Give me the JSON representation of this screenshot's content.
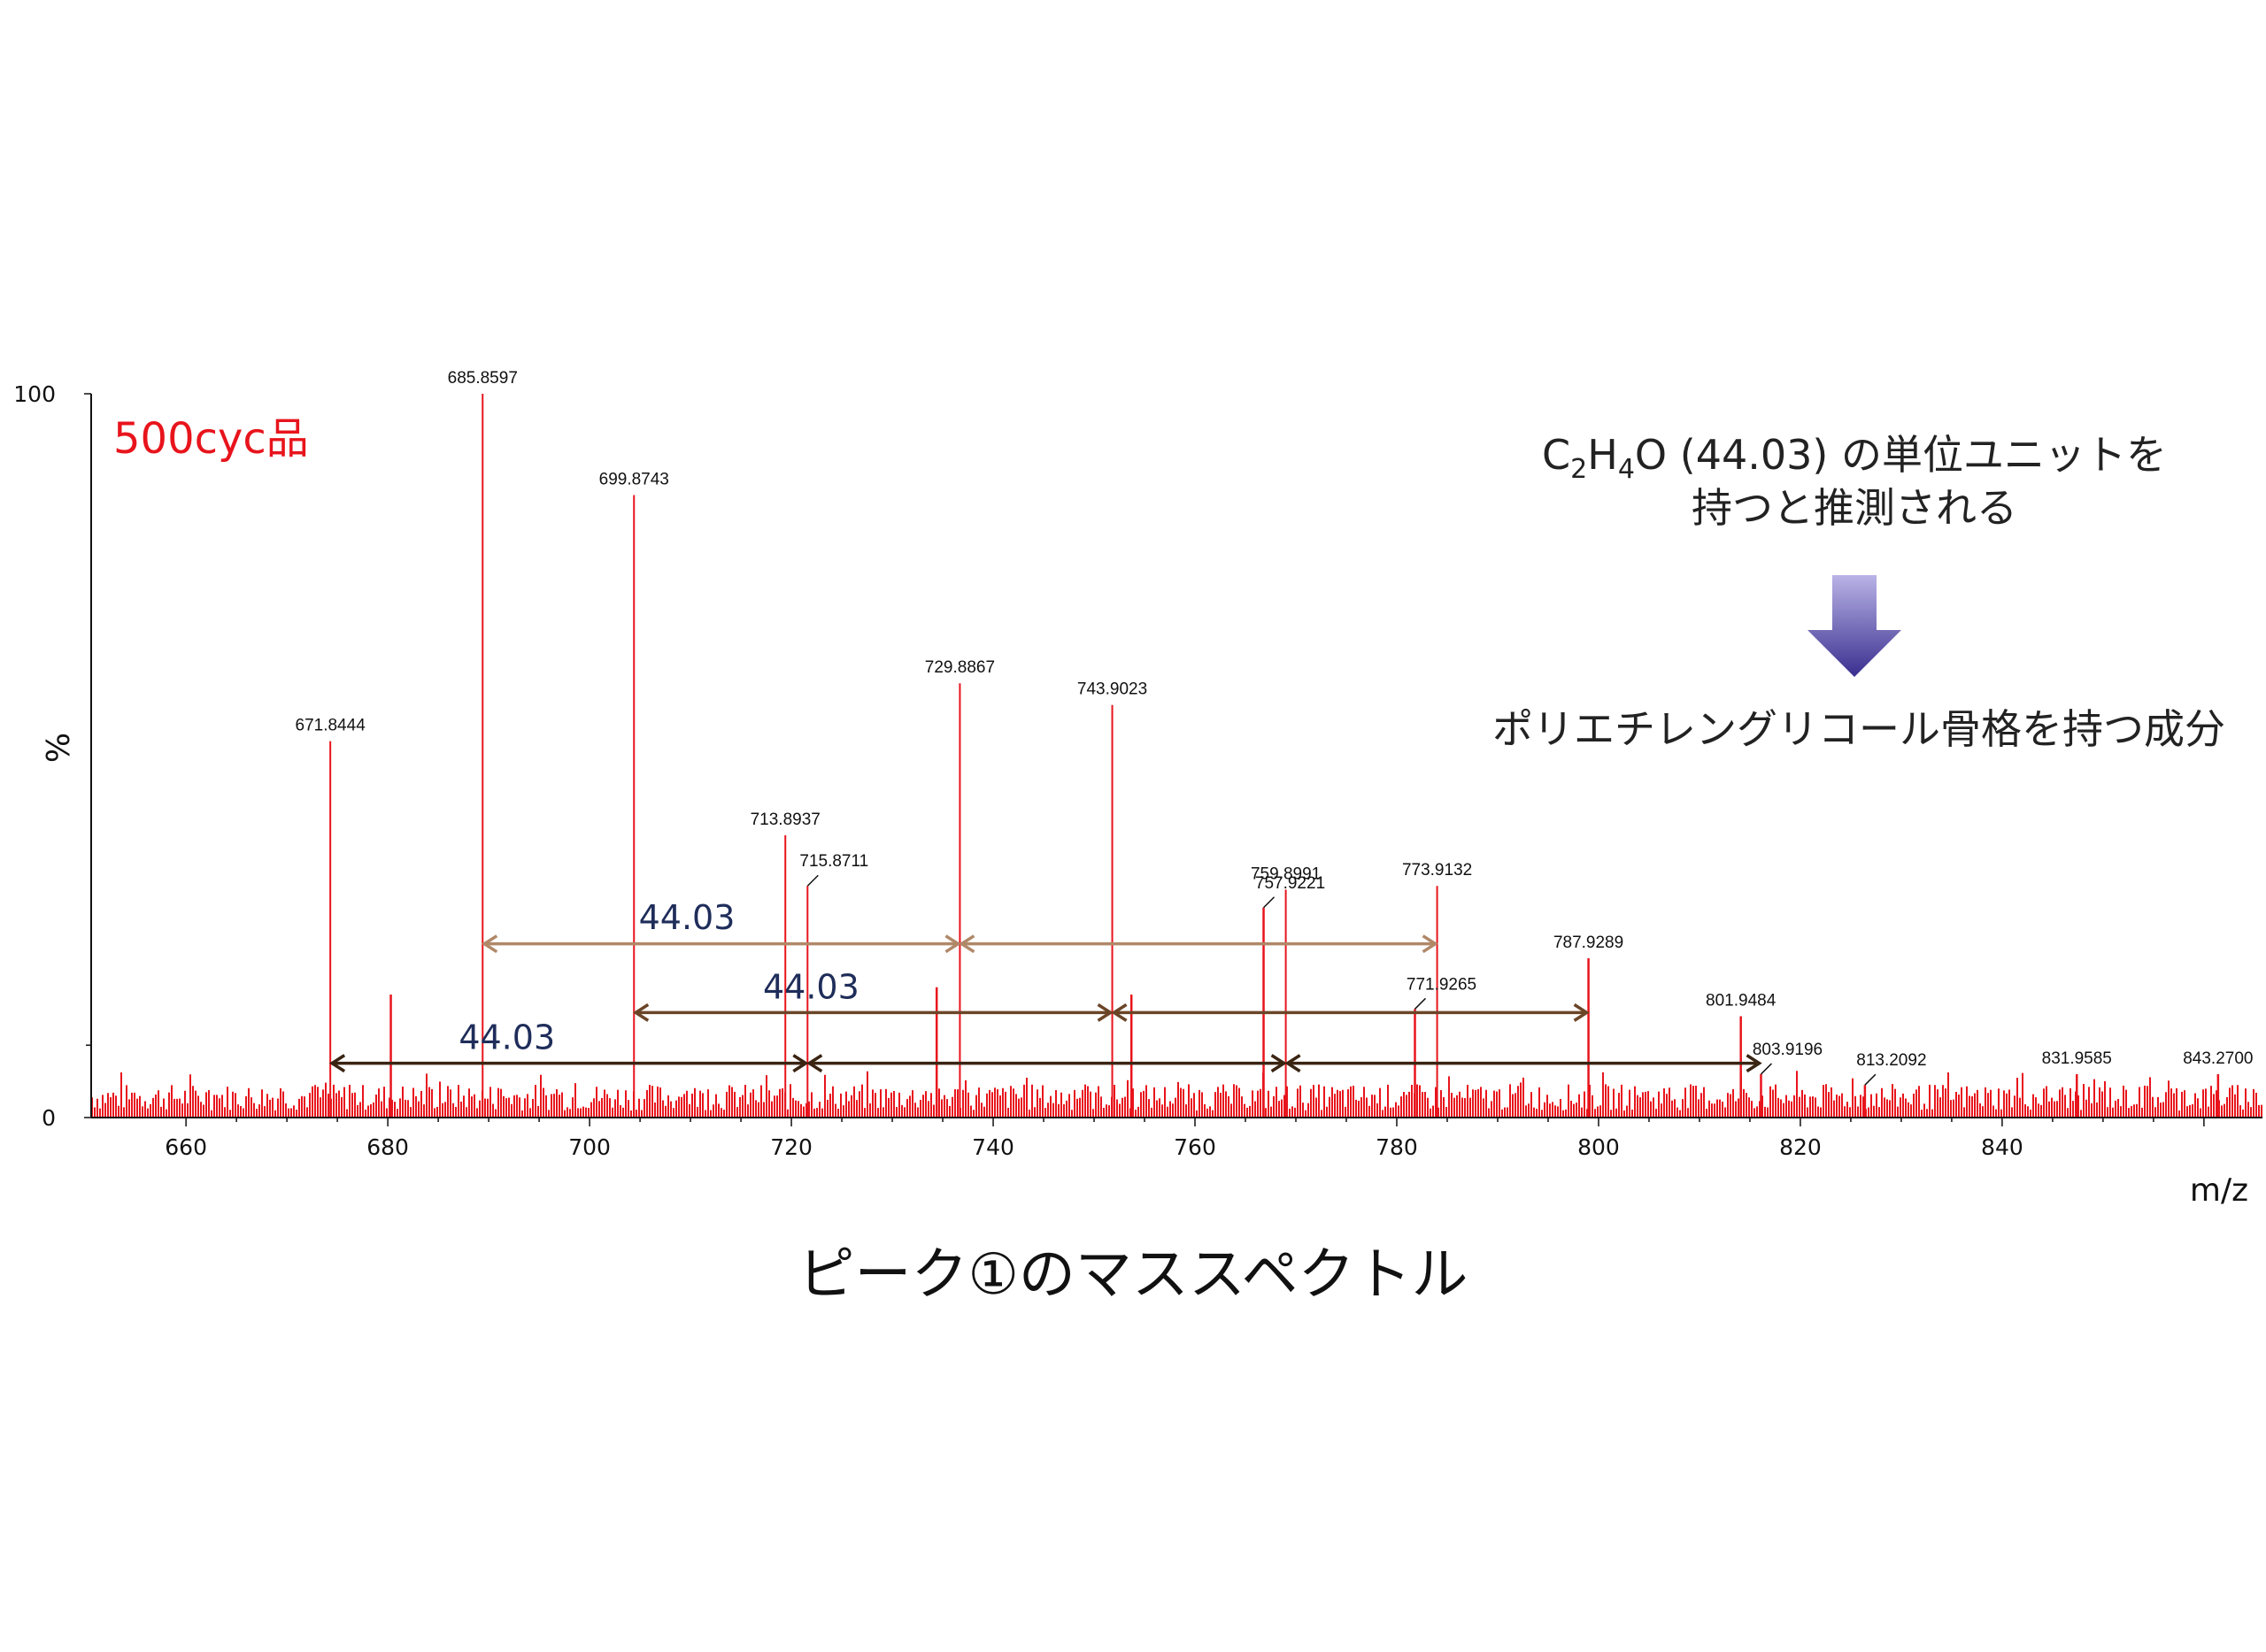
{
  "chart_data": {
    "type": "line",
    "subtype": "mass-spectrum",
    "sample_label": "500cyc品",
    "ylabel": "%",
    "xlabel": "m/z",
    "xlim": [
      650.6,
      865.8
    ],
    "ylim": [
      0,
      100
    ],
    "x_ticks": [
      660,
      680,
      700,
      720,
      740,
      760,
      780,
      800,
      820,
      840
    ],
    "y_ticks": [
      0,
      100
    ],
    "line_color": "#e8141c",
    "peaks": [
      {
        "x": 674.3,
        "y": 52,
        "label": "671.8444"
      },
      {
        "x": 680.3,
        "y": 17,
        "label": ""
      },
      {
        "x": 689.4,
        "y": 100,
        "label": "685.8597"
      },
      {
        "x": 704.4,
        "y": 86,
        "label": "699.8743"
      },
      {
        "x": 719.4,
        "y": 39,
        "label": "713.8937"
      },
      {
        "x": 721.6,
        "y": 32,
        "label": "715.8711",
        "leader": true
      },
      {
        "x": 734.4,
        "y": 18,
        "label": ""
      },
      {
        "x": 736.7,
        "y": 60,
        "label": "729.8867"
      },
      {
        "x": 751.8,
        "y": 57,
        "label": "743.9023"
      },
      {
        "x": 753.7,
        "y": 17,
        "label": ""
      },
      {
        "x": 766.8,
        "y": 29,
        "label": "757.9221",
        "leader": true
      },
      {
        "x": 769.0,
        "y": 31.5,
        "label": "759.8991"
      },
      {
        "x": 781.8,
        "y": 15,
        "label": "771.9265",
        "leader": true
      },
      {
        "x": 784.0,
        "y": 32,
        "label": "773.9132"
      },
      {
        "x": 799.0,
        "y": 22,
        "label": "787.9289"
      },
      {
        "x": 814.1,
        "y": 14,
        "label": "801.9484"
      },
      {
        "x": 816.1,
        "y": 6,
        "label": "803.9196",
        "leader": true
      },
      {
        "x": 826.4,
        "y": 4.5,
        "label": "813.2092",
        "leader": true
      },
      {
        "x": 847.4,
        "y": 6,
        "label": "831.9585"
      },
      {
        "x": 861.4,
        "y": 6,
        "label": "843.2700"
      }
    ],
    "annotations": [
      {
        "from": 689.4,
        "to": 736.7,
        "y": 24,
        "color": "#b08868",
        "label": ""
      },
      {
        "from": 736.7,
        "to": 784.0,
        "y": 24,
        "color": "#b08868",
        "label": ""
      },
      {
        "from": 704.4,
        "to": 751.8,
        "y": 14.5,
        "color": "#6b4528",
        "label": "44.03"
      },
      {
        "from": 751.8,
        "to": 799.0,
        "y": 14.5,
        "color": "#6b4528",
        "label": ""
      },
      {
        "from": 674.3,
        "to": 721.6,
        "y": 7.5,
        "color": "#3a2412",
        "label": "44.03"
      },
      {
        "from": 721.6,
        "to": 769.0,
        "y": 7.5,
        "color": "#3a2412",
        "label": ""
      },
      {
        "from": 769.0,
        "to": 816.1,
        "y": 7.5,
        "color": "#3a2412",
        "label": ""
      }
    ],
    "top_arrow_label": "44.03"
  },
  "note": {
    "line1_formula": {
      "c": "C",
      "sub1": "2",
      "h": "H",
      "sub2": "4",
      "rest": "O (44.03) の単位ユニットを"
    },
    "line2": "持つと推測される",
    "conclusion": "ポリエチレングリコール骨格を持つ成分",
    "arrow_color": "#4b3f9e"
  },
  "caption": "ピーク①のマススペクトル"
}
